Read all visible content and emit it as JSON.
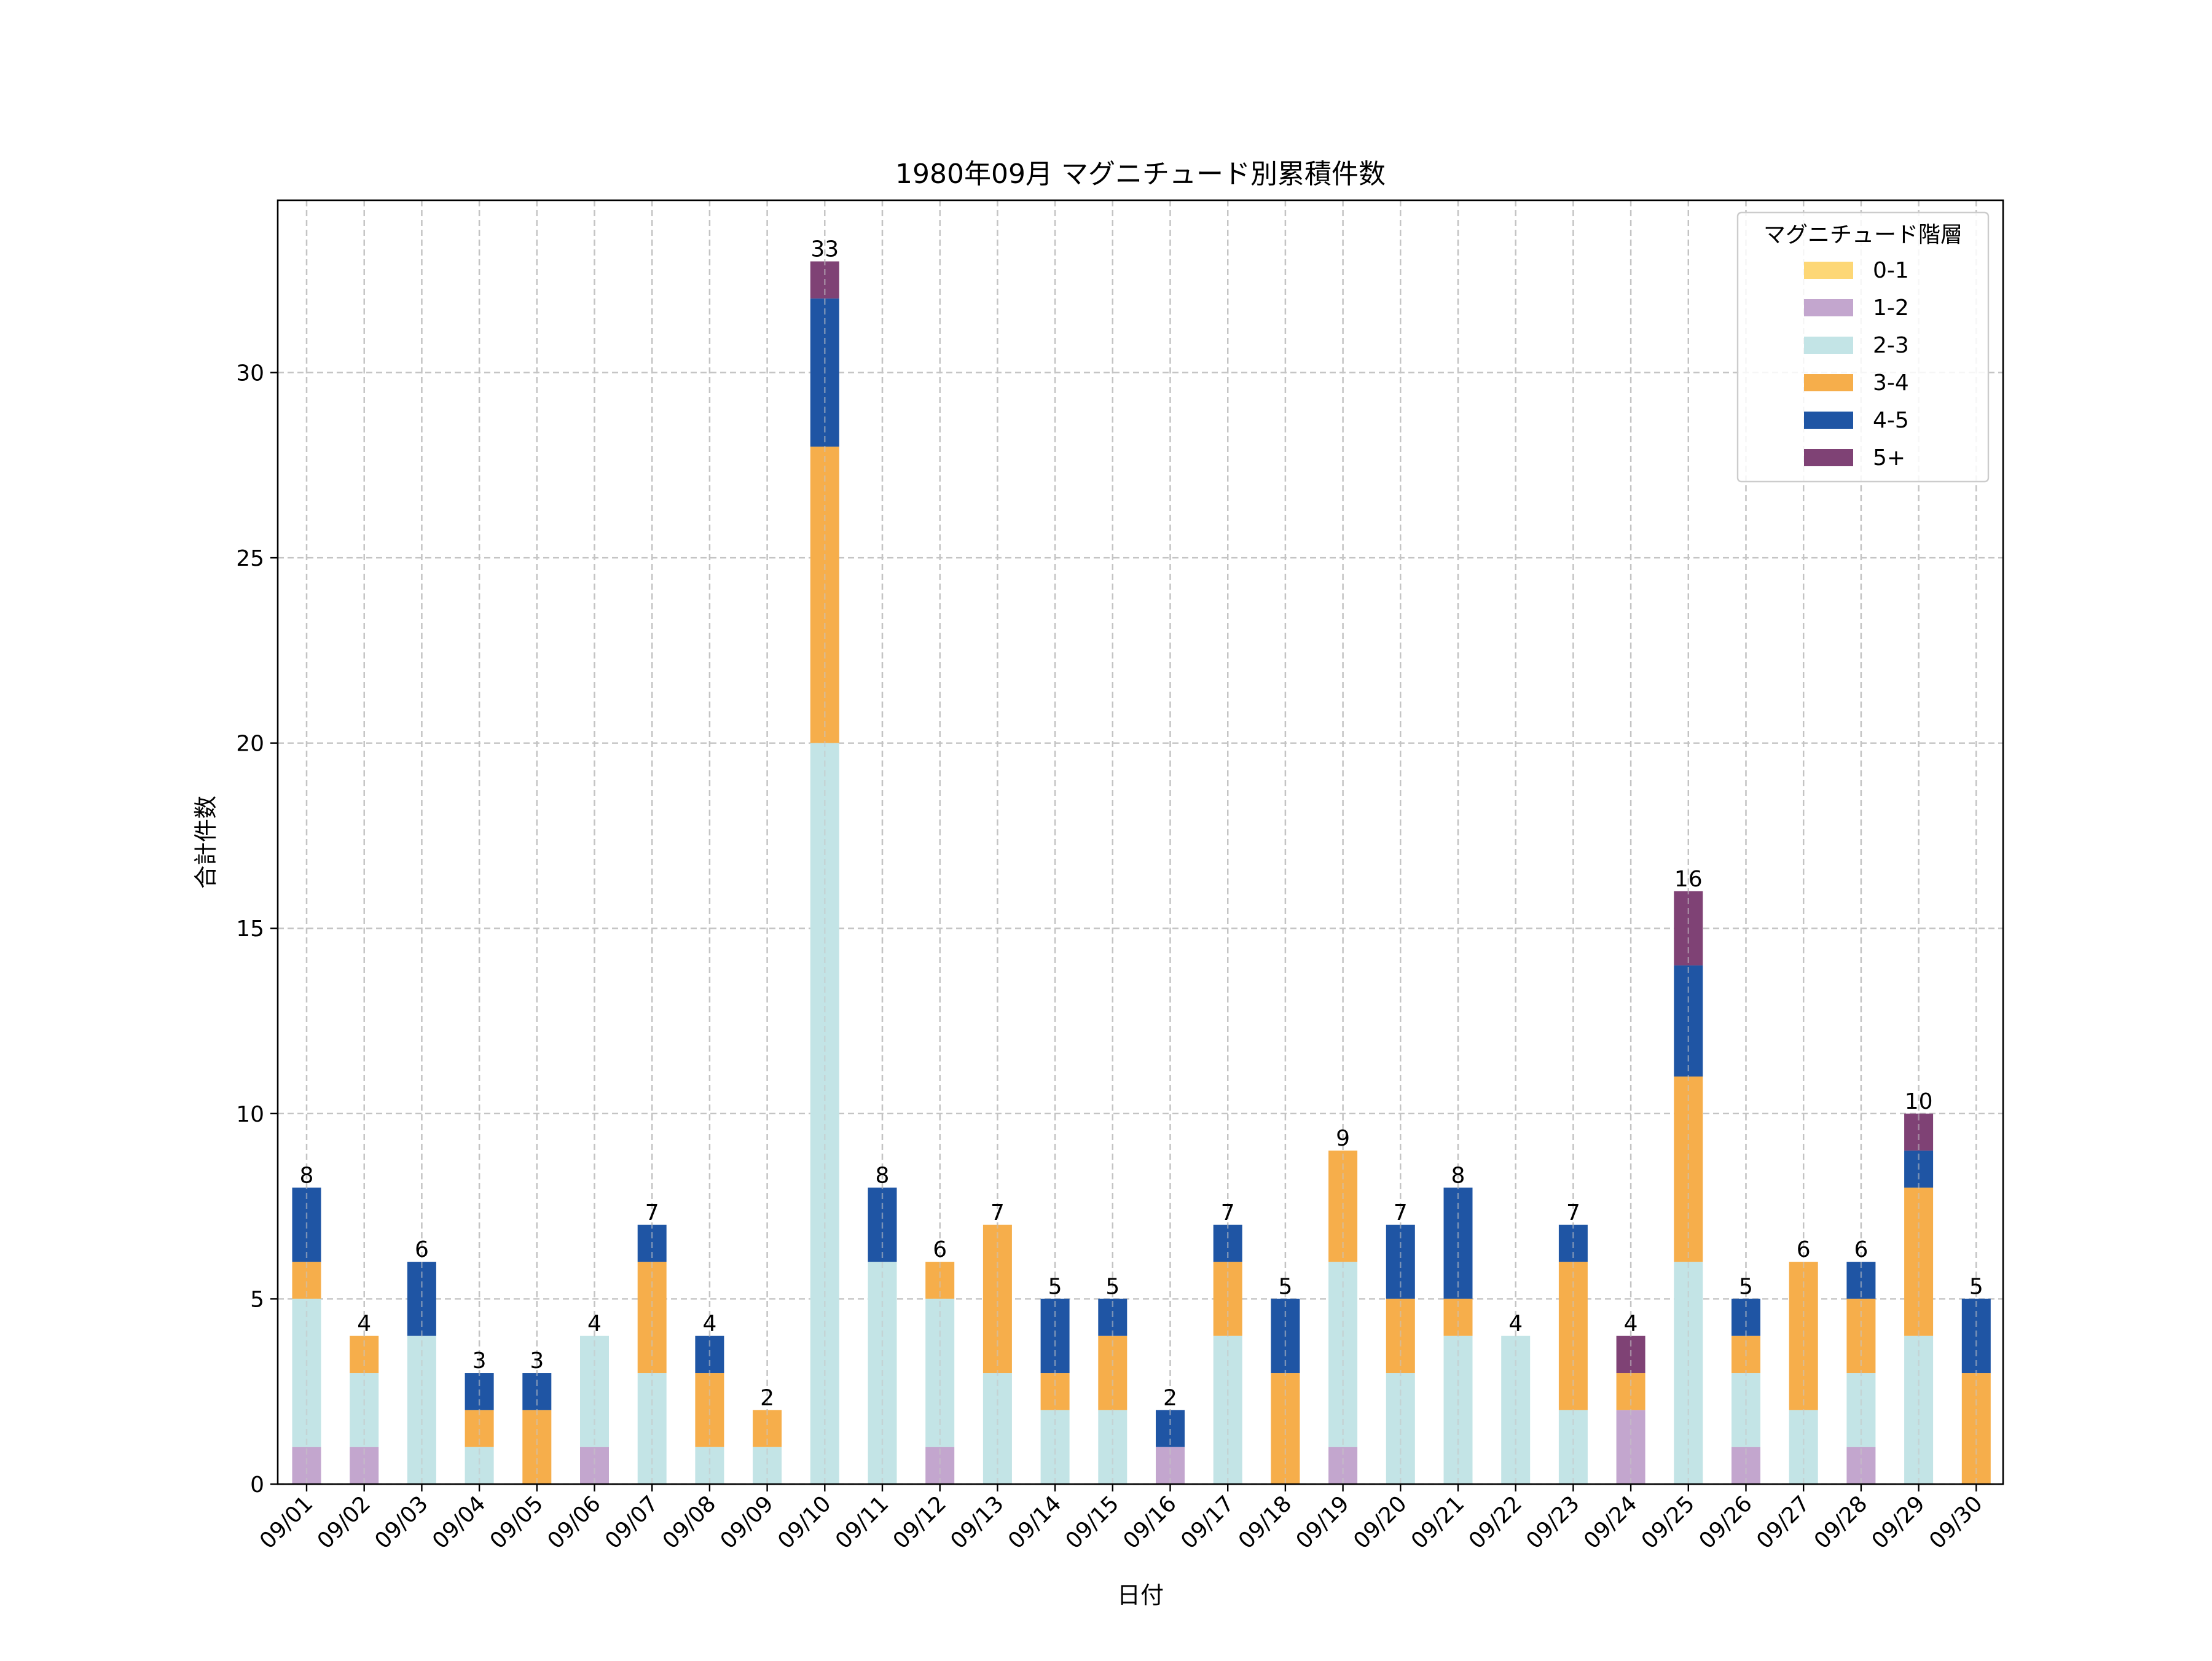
{
  "chart_data": {
    "type": "bar",
    "stacked": true,
    "title": "1980年09月 マグニチュード別累積件数",
    "xlabel": "日付",
    "ylabel": "合計件数",
    "ylim": [
      0,
      34.65
    ],
    "yticks": [
      0,
      5,
      10,
      15,
      20,
      25,
      30
    ],
    "grid": true,
    "legend_position": "top-right",
    "legend_title": "マグニチュード階層",
    "categories": [
      "09/01",
      "09/02",
      "09/03",
      "09/04",
      "09/05",
      "09/06",
      "09/07",
      "09/08",
      "09/09",
      "09/10",
      "09/11",
      "09/12",
      "09/13",
      "09/14",
      "09/15",
      "09/16",
      "09/17",
      "09/18",
      "09/19",
      "09/20",
      "09/21",
      "09/22",
      "09/23",
      "09/24",
      "09/25",
      "09/26",
      "09/27",
      "09/28",
      "09/29",
      "09/30"
    ],
    "series": [
      {
        "name": "0-1",
        "color": "#FDD776",
        "values": [
          0,
          0,
          0,
          0,
          0,
          0,
          0,
          0,
          0,
          0,
          0,
          0,
          0,
          0,
          0,
          0,
          0,
          0,
          0,
          0,
          0,
          0,
          0,
          0,
          0,
          0,
          0,
          0,
          0,
          0
        ]
      },
      {
        "name": "1-2",
        "color": "#C3A6CE",
        "values": [
          1,
          1,
          0,
          0,
          0,
          1,
          0,
          0,
          0,
          0,
          0,
          1,
          0,
          0,
          0,
          1,
          0,
          0,
          1,
          0,
          0,
          0,
          0,
          2,
          0,
          1,
          0,
          1,
          0,
          0
        ]
      },
      {
        "name": "2-3",
        "color": "#C3E4E6",
        "values": [
          4,
          2,
          4,
          1,
          0,
          3,
          3,
          1,
          1,
          20,
          6,
          4,
          3,
          2,
          2,
          0,
          4,
          0,
          5,
          3,
          4,
          4,
          2,
          0,
          6,
          2,
          2,
          2,
          4,
          0
        ]
      },
      {
        "name": "3-4",
        "color": "#F6AE4B",
        "values": [
          1,
          1,
          0,
          1,
          2,
          0,
          3,
          2,
          1,
          8,
          0,
          1,
          4,
          1,
          2,
          0,
          2,
          3,
          3,
          2,
          1,
          0,
          4,
          1,
          5,
          1,
          4,
          2,
          4,
          3
        ]
      },
      {
        "name": "4-5",
        "color": "#1F55A4",
        "values": [
          2,
          0,
          2,
          1,
          1,
          0,
          1,
          1,
          0,
          4,
          2,
          0,
          0,
          2,
          1,
          1,
          1,
          2,
          0,
          2,
          3,
          0,
          1,
          0,
          3,
          1,
          0,
          1,
          1,
          2
        ]
      },
      {
        "name": "5+",
        "color": "#7F4275",
        "values": [
          0,
          0,
          0,
          0,
          0,
          0,
          0,
          0,
          0,
          1,
          0,
          0,
          0,
          0,
          0,
          0,
          0,
          0,
          0,
          0,
          0,
          0,
          0,
          1,
          2,
          0,
          0,
          0,
          1,
          0
        ]
      }
    ],
    "totals": [
      8,
      4,
      6,
      3,
      3,
      4,
      7,
      4,
      2,
      33,
      8,
      6,
      7,
      5,
      5,
      2,
      7,
      5,
      9,
      7,
      8,
      4,
      7,
      4,
      16,
      5,
      6,
      6,
      10,
      5
    ]
  }
}
